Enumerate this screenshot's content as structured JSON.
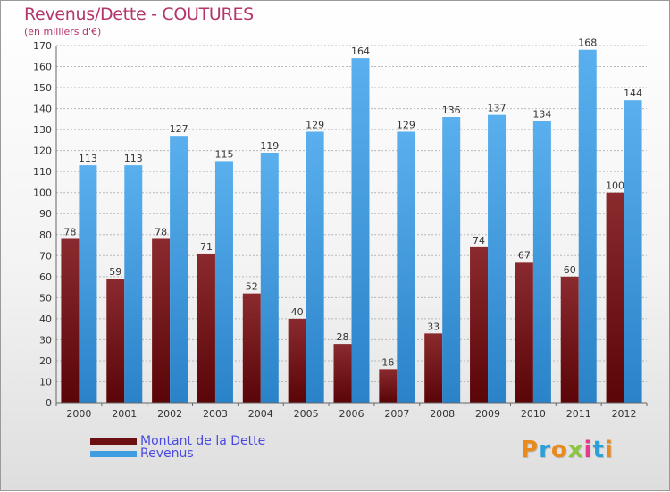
{
  "title": "Revenus/Dette - COUTURES",
  "subtitle": "(en milliers d'€)",
  "logo": {
    "text": "Proxiti",
    "colors": [
      "#e98a1e",
      "#2a9fd8",
      "#e98a1e",
      "#8cc63f",
      "#e83a8a",
      "#2a9fd8",
      "#e98a1e"
    ]
  },
  "chart_data": {
    "type": "bar",
    "categories": [
      "2000",
      "2001",
      "2002",
      "2003",
      "2004",
      "2005",
      "2006",
      "2007",
      "2008",
      "2009",
      "2010",
      "2011",
      "2012"
    ],
    "series": [
      {
        "name": "Montant de la Dette",
        "color": "#6b0f12",
        "values": [
          78,
          59,
          78,
          71,
          52,
          40,
          28,
          16,
          33,
          74,
          67,
          60,
          100
        ]
      },
      {
        "name": "Revenus",
        "color": "#3f9de2",
        "values": [
          113,
          113,
          127,
          115,
          119,
          129,
          164,
          129,
          136,
          137,
          134,
          168,
          144
        ]
      }
    ],
    "ylim": [
      0,
      170
    ],
    "yticks": [
      0,
      10,
      20,
      30,
      40,
      50,
      60,
      70,
      80,
      90,
      100,
      110,
      120,
      130,
      140,
      150,
      160,
      170
    ],
    "grid": true,
    "legend": "bottom-left"
  }
}
